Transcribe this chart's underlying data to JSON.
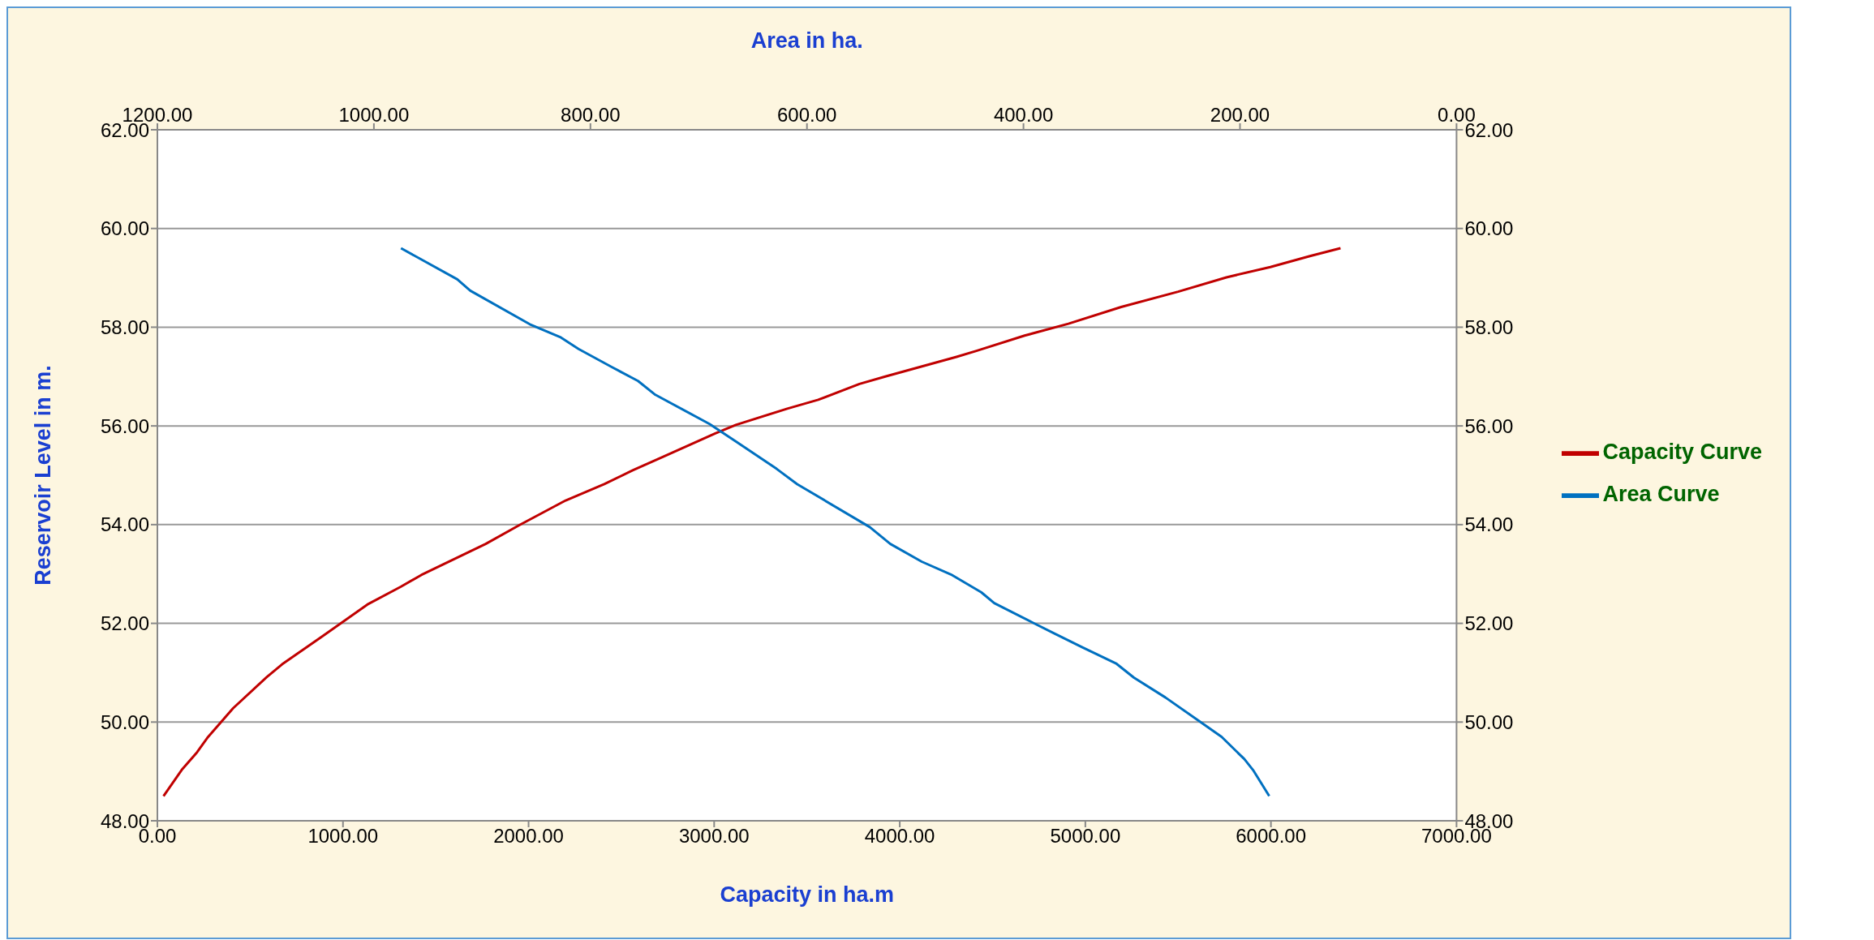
{
  "chart_data": {
    "type": "line",
    "xlabel": "Capacity in ha.m",
    "x2label": "Area in ha.",
    "ylabel": "Reservoir Level in m.",
    "xlim": [
      0,
      7000
    ],
    "xticks": [
      {
        "value": 0,
        "label": "0.00"
      },
      {
        "value": 1000,
        "label": "1000.00"
      },
      {
        "value": 2000,
        "label": "2000.00"
      },
      {
        "value": 3000,
        "label": "3000.00"
      },
      {
        "value": 4000,
        "label": "4000.00"
      },
      {
        "value": 5000,
        "label": "5000.00"
      },
      {
        "value": 6000,
        "label": "6000.00"
      },
      {
        "value": 7000,
        "label": "7000.00"
      }
    ],
    "x2lim": [
      1200,
      0
    ],
    "x2ticks": [
      {
        "value": 1200,
        "label": "1200.00"
      },
      {
        "value": 1000,
        "label": "1000.00"
      },
      {
        "value": 800,
        "label": "800.00"
      },
      {
        "value": 600,
        "label": "600.00"
      },
      {
        "value": 400,
        "label": "400.00"
      },
      {
        "value": 200,
        "label": "200.00"
      },
      {
        "value": 0,
        "label": "0.00"
      }
    ],
    "ylim": [
      48,
      62
    ],
    "yticks": [
      {
        "value": 48,
        "label": "48.00"
      },
      {
        "value": 50,
        "label": "50.00"
      },
      {
        "value": 52,
        "label": "52.00"
      },
      {
        "value": 54,
        "label": "54.00"
      },
      {
        "value": 56,
        "label": "56.00"
      },
      {
        "value": 58,
        "label": "58.00"
      },
      {
        "value": 60,
        "label": "60.00"
      },
      {
        "value": 62,
        "label": "62.00"
      }
    ],
    "y2lim": [
      48,
      62
    ],
    "y2ticks": [
      {
        "value": 48,
        "label": "48.00"
      },
      {
        "value": 50,
        "label": "50.00"
      },
      {
        "value": 52,
        "label": "52.00"
      },
      {
        "value": 54,
        "label": "54.00"
      },
      {
        "value": 56,
        "label": "56.00"
      },
      {
        "value": 58,
        "label": "58.00"
      },
      {
        "value": 60,
        "label": "60.00"
      },
      {
        "value": 62,
        "label": "62.00"
      }
    ],
    "grid": "y",
    "legend": "right",
    "marker": "none",
    "line_style": "solid",
    "series": [
      {
        "name": "Capacity Curve",
        "color": "#c00000",
        "x": [
          33,
          131,
          214,
          269,
          408,
          589,
          672,
          894,
          1131,
          1311,
          1422,
          1769,
          1950,
          2200,
          2408,
          2561,
          2728,
          3006,
          3117,
          3394,
          3561,
          3783,
          3922,
          4306,
          4413,
          4673,
          4909,
          5193,
          5500,
          5760,
          5997,
          6210,
          6375
        ],
        "values": [
          48.5,
          49.03,
          49.39,
          49.68,
          50.28,
          50.91,
          51.17,
          51.75,
          52.38,
          52.74,
          52.98,
          53.61,
          53.99,
          54.49,
          54.82,
          55.1,
          55.38,
          55.85,
          56.02,
          56.35,
          56.53,
          56.85,
          57.0,
          57.4,
          57.52,
          57.83,
          58.07,
          58.41,
          58.72,
          59.01,
          59.22,
          59.44,
          59.6
        ]
      },
      {
        "name": "Area Curve",
        "color": "#0070c0",
        "axis": "x2",
        "x": [
          975,
          923,
          911,
          856,
          828,
          811,
          780,
          756,
          740,
          690,
          666,
          628,
          609,
          542,
          523,
          494,
          467,
          439,
          427,
          391,
          371,
          346,
          314,
          298,
          269,
          237,
          217,
          196,
          188,
          173
        ],
        "values": [
          59.6,
          58.97,
          58.74,
          58.06,
          57.8,
          57.56,
          57.19,
          56.91,
          56.63,
          56.04,
          55.69,
          55.13,
          54.82,
          53.95,
          53.61,
          53.25,
          52.99,
          52.63,
          52.41,
          52.01,
          51.79,
          51.52,
          51.18,
          50.9,
          50.5,
          50.01,
          49.7,
          49.25,
          49.03,
          48.5
        ]
      }
    ]
  }
}
